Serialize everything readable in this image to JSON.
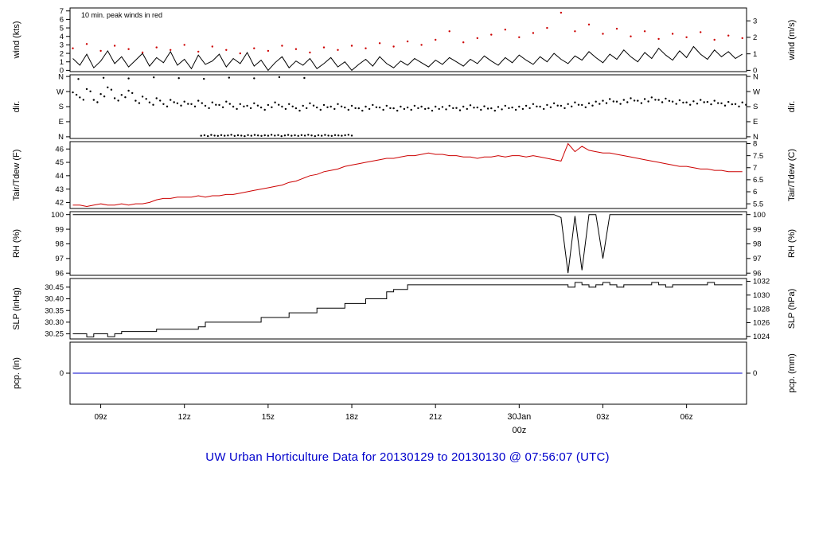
{
  "title": "UW Urban Horticulture Data for 20130129  to  20130130 @ 07:56:07  (UTC)",
  "title_color": "#0000cc",
  "chart_data": {
    "type": "line",
    "description": "Multi-panel meteogram: wind, direction, temperature/dewpoint, relative humidity, sea-level pressure, precipitation vs time (UTC)",
    "x_axis": {
      "lim": [
        7.9,
        32.15
      ],
      "ticks": [
        {
          "x": 9,
          "label": "09z"
        },
        {
          "x": 12,
          "label": "12z"
        },
        {
          "x": 15,
          "label": "15z"
        },
        {
          "x": 18,
          "label": "18z"
        },
        {
          "x": 21,
          "label": "21z"
        },
        {
          "x": 24,
          "label": "30Jan",
          "sublabel": "00z",
          "color": "#cc0000"
        },
        {
          "x": 27,
          "label": "03z"
        },
        {
          "x": 30,
          "label": "06z"
        }
      ]
    },
    "panels": [
      {
        "name": "wind",
        "label_left": "wind (kts)",
        "label_right": "wind (m/s)",
        "height": 80,
        "ylim": [
          -0.15,
          7.35
        ],
        "ticks_left": [
          {
            "v": 0,
            "l": "0"
          },
          {
            "v": 1,
            "l": "1"
          },
          {
            "v": 2,
            "l": "2"
          },
          {
            "v": 3,
            "l": "3"
          },
          {
            "v": 4,
            "l": "4"
          },
          {
            "v": 5,
            "l": "5"
          },
          {
            "v": 6,
            "l": "6"
          },
          {
            "v": 7,
            "l": "7"
          }
        ],
        "ticks_right": [
          {
            "v": 0,
            "l": "0"
          },
          {
            "v": 1.944,
            "l": "1"
          },
          {
            "v": 3.889,
            "l": "2"
          },
          {
            "v": 5.833,
            "l": "3"
          }
        ],
        "annotation": {
          "text": "10 min. peak winds in red",
          "color": "#cc0000"
        },
        "series": [
          {
            "kind": "line",
            "color": "#000000",
            "x0": 8,
            "dx": 0.25,
            "values": [
              1.4,
              0.6,
              1.9,
              0.3,
              1.1,
              2.3,
              0.8,
              1.6,
              0.4,
              1.2,
              2.0,
              0.5,
              1.5,
              0.9,
              2.2,
              0.6,
              1.3,
              0.2,
              1.8,
              0.7,
              1.1,
              1.9,
              0.4,
              1.4,
              0.8,
              2.1,
              0.5,
              1.2,
              0.0,
              0.9,
              1.6,
              0.3,
              1.1,
              0.6,
              1.4,
              0.2,
              0.8,
              1.5,
              0.4,
              1.0,
              0.0,
              0.7,
              1.3,
              0.5,
              1.6,
              0.8,
              0.3,
              1.1,
              0.6,
              1.4,
              0.9,
              0.4,
              1.2,
              0.7,
              1.5,
              1.0,
              0.5,
              1.3,
              0.8,
              1.7,
              1.1,
              0.6,
              1.5,
              0.9,
              1.8,
              1.2,
              0.7,
              1.6,
              1.0,
              2.0,
              1.3,
              0.8,
              1.7,
              1.2,
              2.2,
              1.5,
              0.9,
              1.9,
              1.3,
              2.4,
              1.6,
              1.0,
              2.1,
              1.4,
              2.6,
              1.8,
              1.2,
              2.3,
              1.5,
              2.8,
              1.9,
              1.3,
              2.4,
              1.6,
              2.2,
              1.4,
              1.9
            ]
          },
          {
            "kind": "scatter",
            "color": "#cc0000",
            "x0": 8,
            "dx": 0.5,
            "values": [
              2.6,
              3.1,
              2.3,
              2.9,
              2.5,
              2.1,
              2.7,
              2.4,
              3.0,
              2.2,
              2.8,
              2.4,
              2.0,
              2.6,
              2.3,
              2.9,
              2.5,
              2.1,
              2.7,
              2.4,
              2.9,
              2.6,
              3.2,
              2.8,
              3.4,
              3.0,
              3.6,
              4.6,
              3.3,
              3.8,
              4.2,
              4.8,
              3.9,
              4.4,
              5.0,
              6.8,
              4.6,
              5.4,
              4.3,
              4.9,
              4.0,
              4.6,
              3.7,
              4.3,
              3.9,
              4.5,
              3.6,
              4.1,
              3.8
            ]
          }
        ]
      },
      {
        "name": "dir",
        "label_left": "dir.",
        "label_right": "dir.",
        "height": 80,
        "ylim": [
          -10,
          370
        ],
        "ticks_left": [
          {
            "v": 0,
            "l": "N"
          },
          {
            "v": 90,
            "l": "E"
          },
          {
            "v": 180,
            "l": "S"
          },
          {
            "v": 270,
            "l": "W"
          },
          {
            "v": 360,
            "l": "N"
          }
        ],
        "ticks_right": [
          {
            "v": 0,
            "l": "N"
          },
          {
            "v": 90,
            "l": "E"
          },
          {
            "v": 180,
            "l": "S"
          },
          {
            "v": 270,
            "l": "W"
          },
          {
            "v": 360,
            "l": "N"
          }
        ],
        "series": [
          {
            "kind": "scatter",
            "color": "#000000",
            "x0": 8,
            "dx": 0.25,
            "echo": [
              0.13,
              -14
            ],
            "values": [
              265,
              235,
              285,
              220,
              255,
              295,
              230,
              250,
              275,
              215,
              240,
              205,
              230,
              195,
              220,
              200,
              210,
              195,
              215,
              185,
              205,
              190,
              210,
              180,
              195,
              185,
              200,
              175,
              190,
              205,
              180,
              195,
              170,
              185,
              200,
              175,
              190,
              180,
              195,
              175,
              185,
              170,
              180,
              190,
              175,
              185,
              170,
              180,
              175,
              185,
              180,
              170,
              180,
              178,
              185,
              172,
              180,
              188,
              175,
              182,
              170,
              178,
              185,
              175,
              180,
              185,
              195,
              180,
              190,
              200,
              185,
              195,
              205,
              190,
              200,
              210,
              215,
              225,
              210,
              220,
              230,
              215,
              225,
              235,
              220,
              228,
              210,
              218,
              205,
              212,
              220,
              208,
              215,
              200,
              208,
              195,
              205
            ]
          },
          {
            "kind": "scatter",
            "color": "#000000",
            "x0": 12.6,
            "dx": 0.12,
            "values": [
              6,
              9,
              4,
              11,
              7,
              5,
              10,
              6,
              8,
              12,
              5,
              9,
              7,
              4,
              10,
              6,
              11,
              8,
              5,
              9,
              6,
              12,
              7,
              10,
              4,
              8,
              11,
              6,
              9,
              5,
              10,
              7,
              12,
              8,
              4,
              9,
              6,
              11,
              7,
              5,
              10,
              8,
              6,
              9,
              12,
              7
            ]
          },
          {
            "kind": "scatter",
            "color": "#000000",
            "x0": 8.2,
            "dx": 0.9,
            "values": [
              345,
              352,
              348,
              355,
              350,
              346,
              353,
              349,
              356,
              351
            ]
          }
        ]
      },
      {
        "name": "temperature",
        "label_left": "Tair/Tdew (F)",
        "label_right": "Tair/Tdew (C)",
        "height": 84,
        "ylim": [
          41.55,
          46.55
        ],
        "ticks_left": [
          {
            "v": 42,
            "l": "42"
          },
          {
            "v": 43,
            "l": "43"
          },
          {
            "v": 44,
            "l": "44"
          },
          {
            "v": 45,
            "l": "45"
          },
          {
            "v": 46,
            "l": "46"
          }
        ],
        "ticks_right": [
          {
            "v": 41.9,
            "l": "5.5"
          },
          {
            "v": 42.8,
            "l": "6"
          },
          {
            "v": 43.7,
            "l": "6.5"
          },
          {
            "v": 44.6,
            "l": "7"
          },
          {
            "v": 45.5,
            "l": "7.5"
          },
          {
            "v": 46.4,
            "l": "8"
          }
        ],
        "series": [
          {
            "kind": "line",
            "color": "#cc0000",
            "x0": 8,
            "dx": 0.25,
            "values": [
              41.8,
              41.8,
              41.7,
              41.8,
              41.9,
              41.8,
              41.8,
              41.9,
              41.8,
              41.9,
              41.9,
              42.0,
              42.2,
              42.3,
              42.3,
              42.4,
              42.4,
              42.4,
              42.5,
              42.4,
              42.5,
              42.5,
              42.6,
              42.6,
              42.7,
              42.8,
              42.9,
              43.0,
              43.1,
              43.2,
              43.3,
              43.5,
              43.6,
              43.8,
              44.0,
              44.1,
              44.3,
              44.4,
              44.5,
              44.7,
              44.8,
              44.9,
              45.0,
              45.1,
              45.2,
              45.3,
              45.3,
              45.4,
              45.5,
              45.5,
              45.6,
              45.7,
              45.6,
              45.6,
              45.5,
              45.5,
              45.4,
              45.4,
              45.3,
              45.4,
              45.4,
              45.5,
              45.4,
              45.5,
              45.5,
              45.4,
              45.5,
              45.4,
              45.3,
              45.2,
              45.1,
              46.4,
              45.8,
              46.2,
              45.9,
              45.8,
              45.7,
              45.7,
              45.6,
              45.5,
              45.4,
              45.3,
              45.2,
              45.1,
              45.0,
              44.9,
              44.8,
              44.7,
              44.7,
              44.6,
              44.5,
              44.5,
              44.4,
              44.4,
              44.3,
              44.3,
              44.3
            ]
          }
        ]
      },
      {
        "name": "humidity",
        "label_left": "RH (%)",
        "label_right": "RH (%)",
        "height": 80,
        "ylim": [
          95.85,
          100.2
        ],
        "ticks_left": [
          {
            "v": 96,
            "l": "96"
          },
          {
            "v": 97,
            "l": "97"
          },
          {
            "v": 98,
            "l": "98"
          },
          {
            "v": 99,
            "l": "99"
          },
          {
            "v": 100,
            "l": "100"
          }
        ],
        "ticks_right": [
          {
            "v": 96,
            "l": "96"
          },
          {
            "v": 97,
            "l": "97"
          },
          {
            "v": 98,
            "l": "98"
          },
          {
            "v": 99,
            "l": "99"
          },
          {
            "v": 100,
            "l": "100"
          }
        ],
        "series": [
          {
            "kind": "line",
            "color": "#000000",
            "x0": 8,
            "dx": 0.25,
            "values": [
              100,
              100,
              100,
              100,
              100,
              100,
              100,
              100,
              100,
              100,
              100,
              100,
              100,
              100,
              100,
              100,
              100,
              100,
              100,
              100,
              100,
              100,
              100,
              100,
              100,
              100,
              100,
              100,
              100,
              100,
              100,
              100,
              100,
              100,
              100,
              100,
              100,
              100,
              100,
              100,
              100,
              100,
              100,
              100,
              100,
              100,
              100,
              100,
              100,
              100,
              100,
              100,
              100,
              100,
              100,
              100,
              100,
              100,
              100,
              100,
              100,
              100,
              100,
              100,
              100,
              100,
              100,
              100,
              100,
              100,
              99.8,
              96.0,
              99.9,
              96.2,
              100,
              100,
              97.0,
              100,
              100,
              100,
              100,
              100,
              100,
              100,
              100,
              100,
              100,
              100,
              100,
              100,
              100,
              100,
              100,
              100,
              100,
              100,
              100
            ]
          }
        ]
      },
      {
        "name": "pressure",
        "label_left": "SLP (inHg)",
        "label_right": "SLP (hPa)",
        "height": 76,
        "ylim": [
          30.228,
          30.487
        ],
        "ticks_left": [
          {
            "v": 30.25,
            "l": "30.25"
          },
          {
            "v": 30.3,
            "l": "30.30"
          },
          {
            "v": 30.35,
            "l": "30.35"
          },
          {
            "v": 30.4,
            "l": "30.40"
          },
          {
            "v": 30.45,
            "l": "30.45"
          }
        ],
        "ticks_right": [
          {
            "v": 30.239,
            "l": "1024"
          },
          {
            "v": 30.298,
            "l": "1026"
          },
          {
            "v": 30.357,
            "l": "1028"
          },
          {
            "v": 30.416,
            "l": "1030"
          },
          {
            "v": 30.475,
            "l": "1032"
          }
        ],
        "series": [
          {
            "kind": "step",
            "color": "#000000",
            "x0": 8,
            "dx": 0.25,
            "values": [
              30.25,
              30.25,
              30.237,
              30.25,
              30.25,
              30.238,
              30.25,
              30.26,
              30.26,
              30.26,
              30.26,
              30.26,
              30.27,
              30.27,
              30.27,
              30.27,
              30.27,
              30.27,
              30.28,
              30.3,
              30.3,
              30.3,
              30.3,
              30.3,
              30.3,
              30.3,
              30.3,
              30.32,
              30.32,
              30.32,
              30.32,
              30.34,
              30.34,
              30.34,
              30.34,
              30.36,
              30.36,
              30.36,
              30.36,
              30.38,
              30.38,
              30.38,
              30.4,
              30.4,
              30.4,
              30.43,
              30.44,
              30.44,
              30.46,
              30.46,
              30.46,
              30.46,
              30.46,
              30.46,
              30.46,
              30.46,
              30.46,
              30.46,
              30.46,
              30.46,
              30.46,
              30.46,
              30.46,
              30.46,
              30.46,
              30.46,
              30.46,
              30.46,
              30.46,
              30.46,
              30.46,
              30.45,
              30.47,
              30.46,
              30.45,
              30.46,
              30.47,
              30.46,
              30.45,
              30.46,
              30.46,
              30.46,
              30.46,
              30.47,
              30.46,
              30.45,
              30.46,
              30.46,
              30.46,
              30.46,
              30.46,
              30.47,
              30.46,
              30.46,
              30.46,
              30.46,
              30.46
            ]
          }
        ]
      },
      {
        "name": "precipitation",
        "label_left": "pcp. (in)",
        "label_right": "pcp. (mm)",
        "height": 78,
        "ylim": [
          -1,
          1
        ],
        "ticks_left": [
          {
            "v": 0,
            "l": "0"
          }
        ],
        "ticks_right": [
          {
            "v": 0,
            "l": "0"
          }
        ],
        "series": [
          {
            "kind": "line",
            "color": "#0000cc",
            "x0": 8,
            "dx": 24,
            "values": [
              0,
              0
            ]
          }
        ]
      }
    ]
  }
}
